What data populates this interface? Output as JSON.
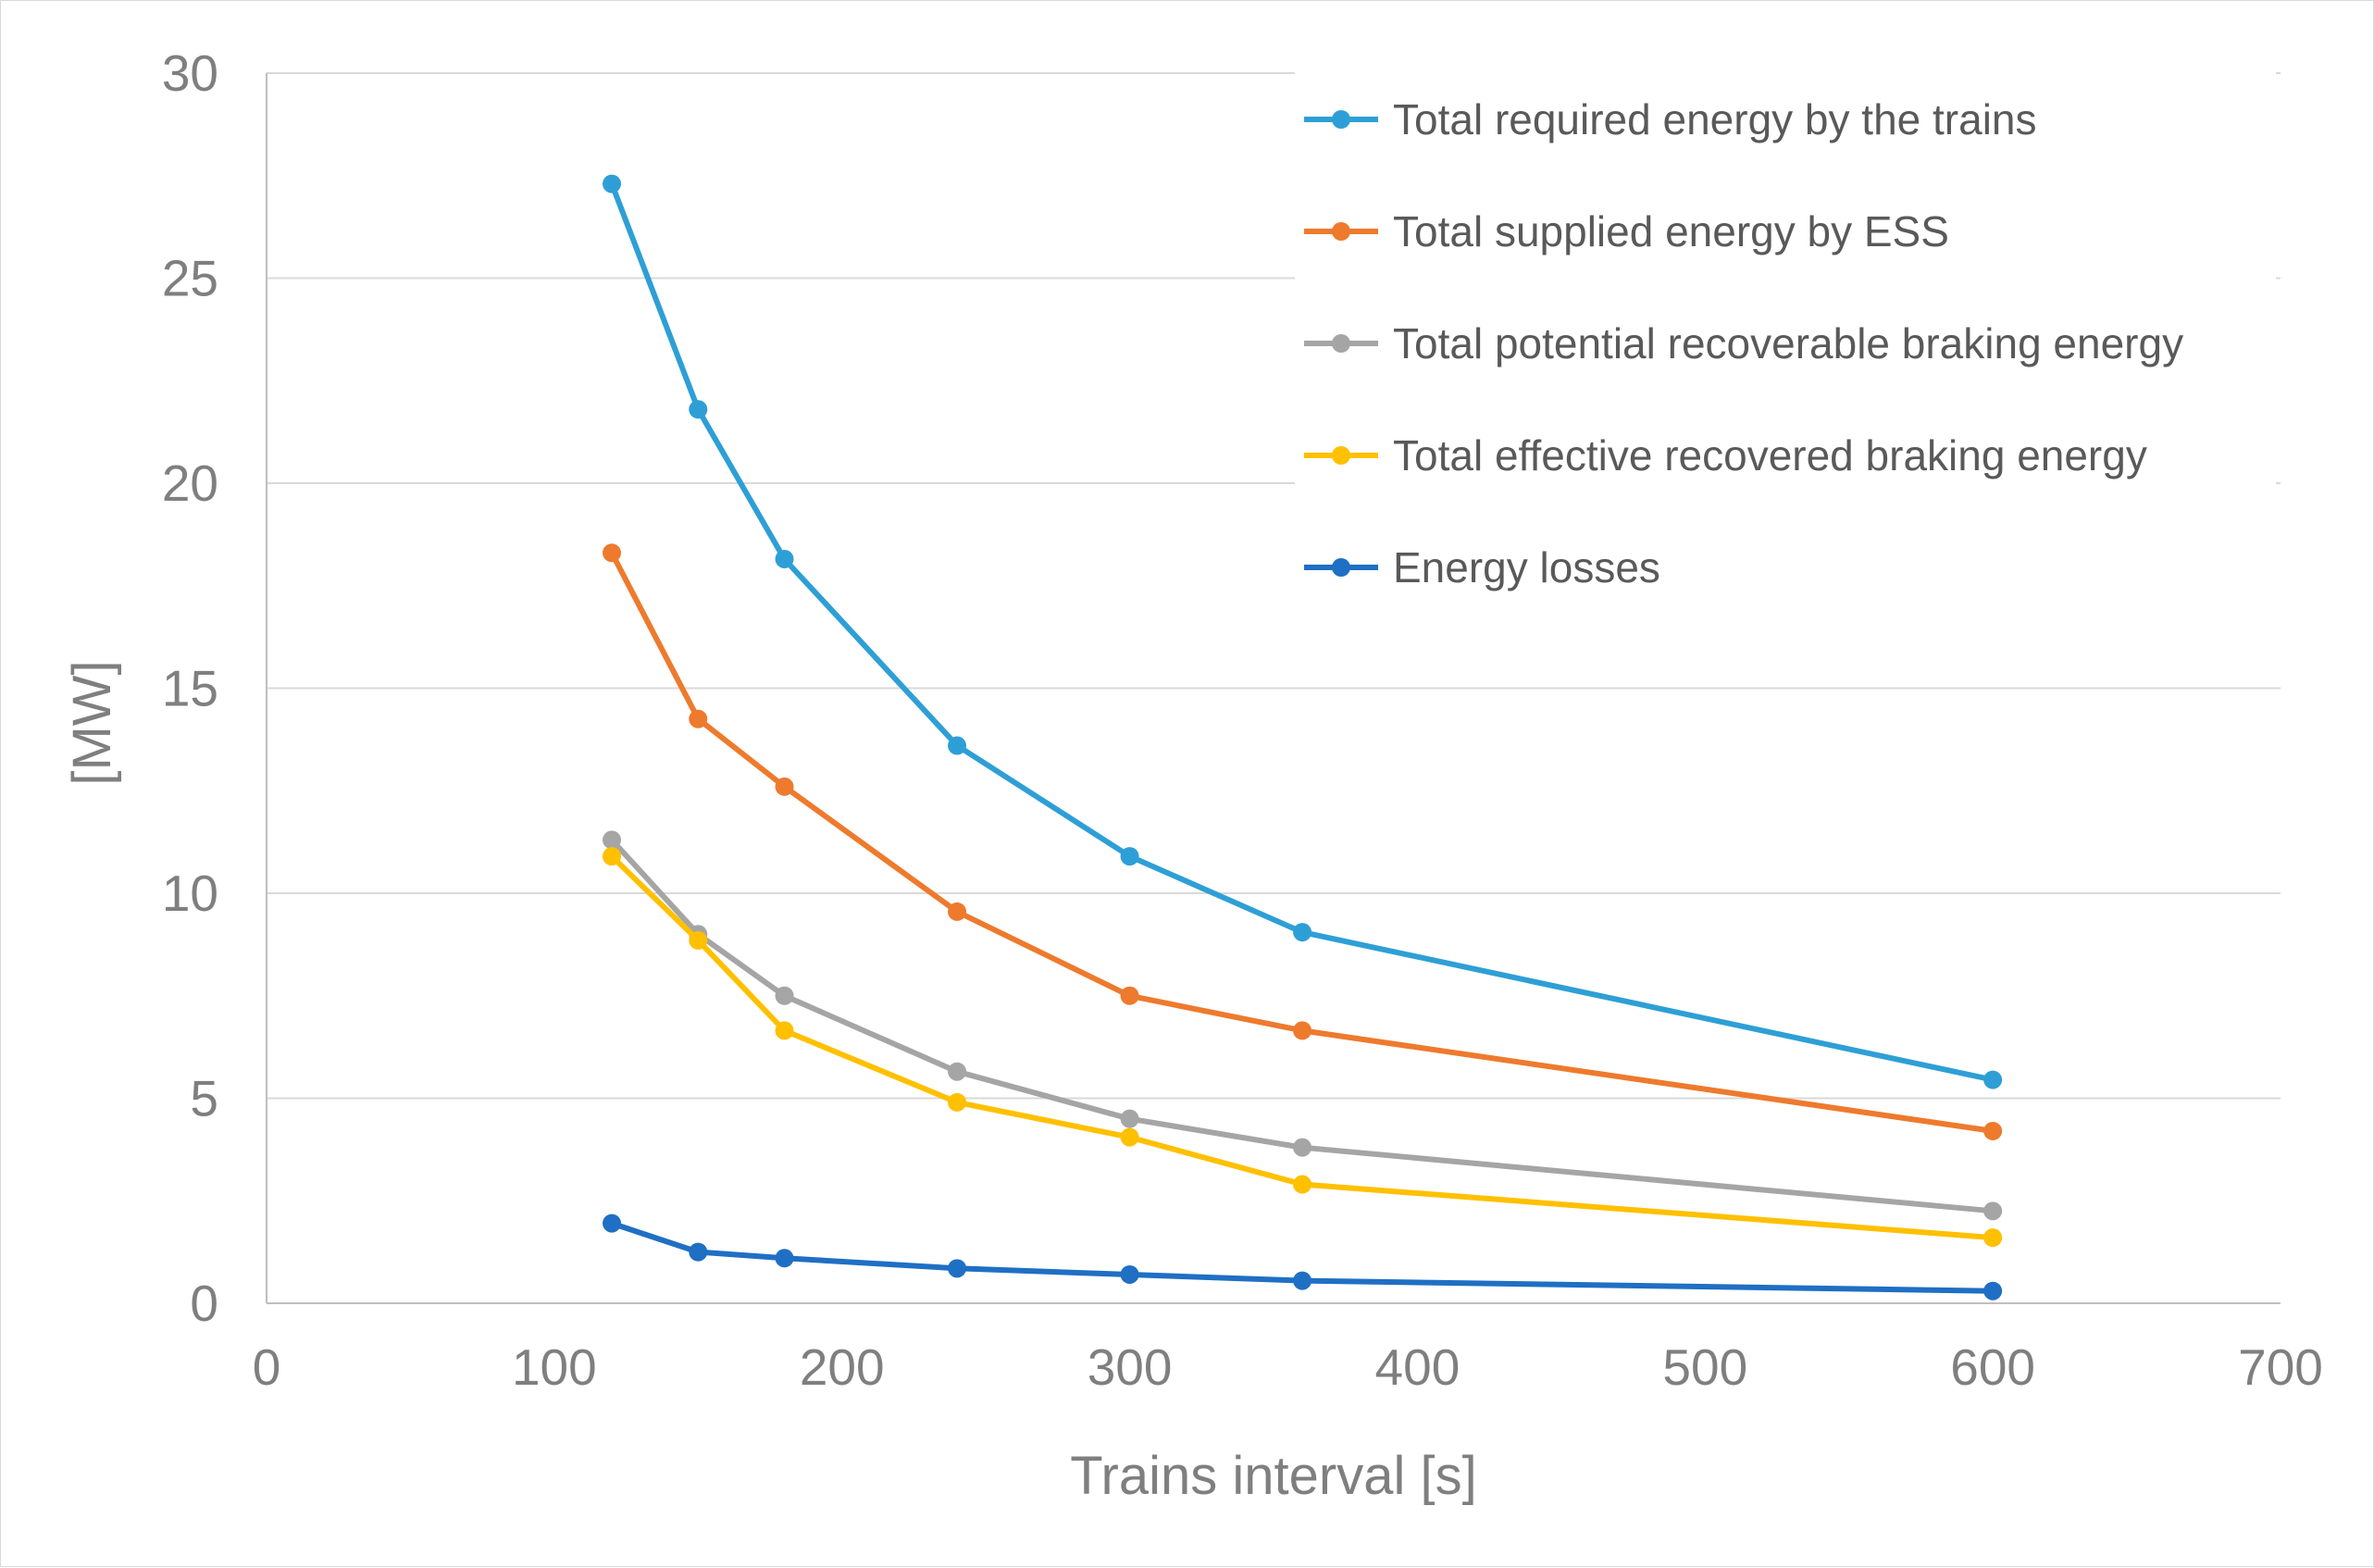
{
  "chart_data": {
    "type": "line",
    "title": "",
    "xlabel": "Trains interval [s]",
    "ylabel": "[MW]",
    "xlim": [
      0,
      700
    ],
    "ylim": [
      0,
      30
    ],
    "x_ticks": [
      "0",
      "100",
      "200",
      "300",
      "400",
      "500",
      "600",
      "700"
    ],
    "y_ticks": [
      "0",
      "5",
      "10",
      "15",
      "20",
      "25",
      "30"
    ],
    "grid": "horizontal",
    "legend_position": "top-right",
    "x": [
      120,
      150,
      180,
      240,
      300,
      360,
      600
    ],
    "series": [
      {
        "name": "Total required energy by the trains",
        "color": "#2e9fd6",
        "values": [
          27.3,
          21.8,
          18.15,
          13.6,
          10.9,
          9.05,
          5.45
        ]
      },
      {
        "name": "Total supplied energy by ESS",
        "color": "#ee7a2d",
        "values": [
          18.3,
          14.25,
          12.6,
          9.55,
          7.5,
          6.65,
          4.2
        ]
      },
      {
        "name": "Total potential recoverable braking energy",
        "color": "#a5a5a5",
        "values": [
          11.3,
          9.0,
          7.5,
          5.65,
          4.5,
          3.8,
          2.25
        ]
      },
      {
        "name": "Total effective recovered braking energy",
        "color": "#ffc000",
        "values": [
          10.9,
          8.85,
          6.65,
          4.9,
          4.05,
          2.9,
          1.6
        ]
      },
      {
        "name": "Energy losses",
        "color": "#1f6fc4",
        "values": [
          1.95,
          1.25,
          1.1,
          0.85,
          0.7,
          0.55,
          0.3
        ]
      }
    ]
  }
}
